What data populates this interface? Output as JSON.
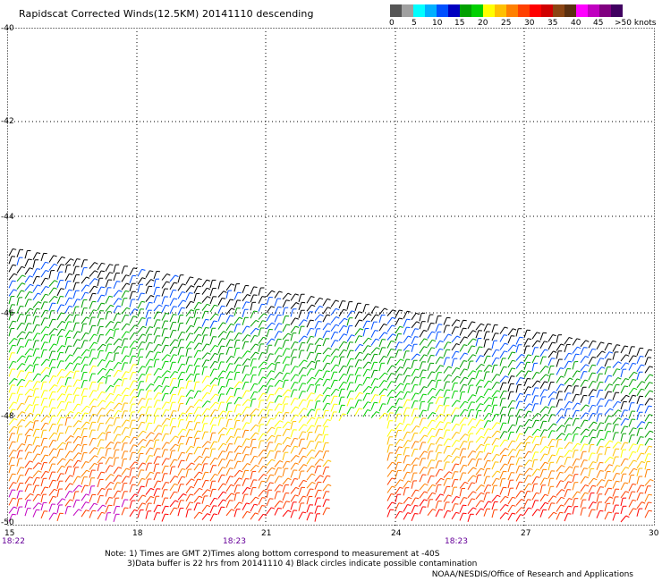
{
  "title": "Rapidscat Corrected Winds(12.5KM) 20141110 descending",
  "legend": {
    "colors": [
      "#555555",
      "#a0a0a0",
      "#00ffff",
      "#00b0ff",
      "#0050ff",
      "#0000c0",
      "#00a000",
      "#00d000",
      "#ffff00",
      "#ffc000",
      "#ff8000",
      "#ff4000",
      "#ff0000",
      "#d00000",
      "#8b4513",
      "#5a3010",
      "#ff00ff",
      "#c000c0",
      "#800080",
      "#400060"
    ],
    "labels": [
      "0",
      "5",
      "10",
      "15",
      "20",
      "25",
      "30",
      "35",
      "40",
      "45",
      ">50 knots"
    ]
  },
  "axes": {
    "y_labels": [
      "-40",
      "-42",
      "-44",
      "-46",
      "-48",
      "-50"
    ],
    "x_labels": [
      "15",
      "18",
      "21",
      "24",
      "27",
      "30"
    ],
    "time_labels": [
      "18:22",
      "18:23",
      "18:23"
    ]
  },
  "notes": [
    "Note: 1) Times are GMT 2)Times along bottom correspond to measurement at -40S",
    "3)Data buffer is 22 hrs from 20141110 4) Black circles indicate possible contamination"
  ],
  "credit": "NOAA/NESDIS/Office of Research and Applications"
}
